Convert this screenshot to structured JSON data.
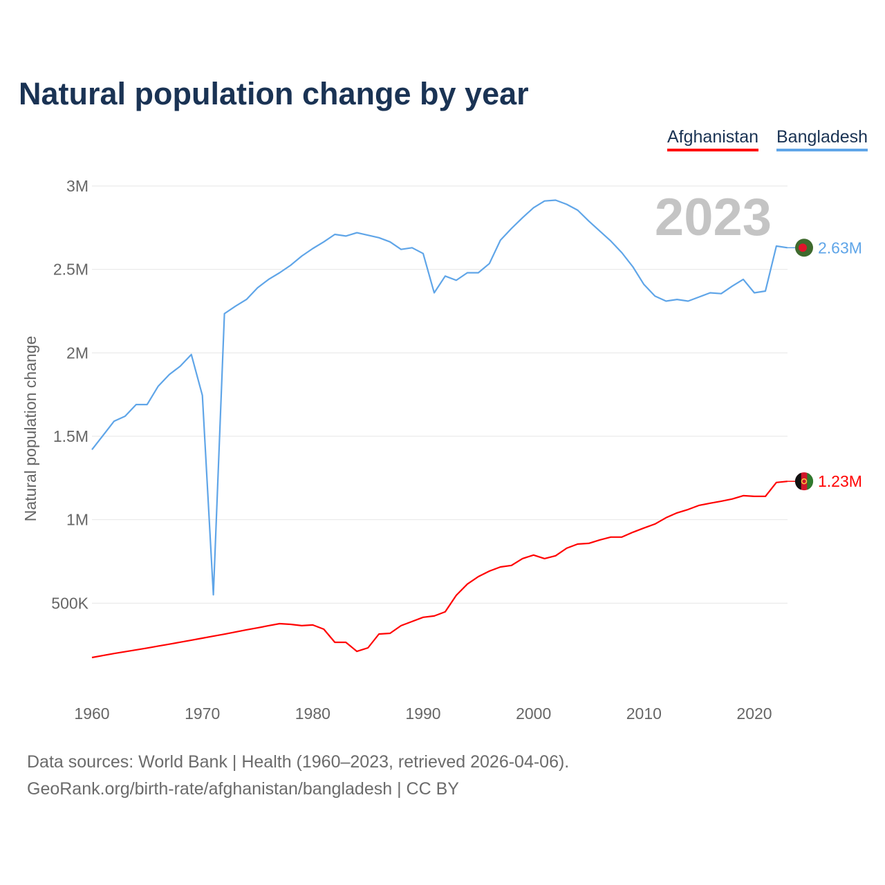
{
  "chart_data": {
    "type": "line",
    "title": "Natural population change by year",
    "xlabel": "",
    "ylabel": "Natural population change",
    "xlim": [
      1960,
      2023
    ],
    "ylim": [
      0,
      3000000
    ],
    "x_ticks": [
      1960,
      1970,
      1980,
      1990,
      2000,
      2010,
      2020
    ],
    "y_ticks": [
      {
        "v": 500000,
        "label": "500K"
      },
      {
        "v": 1000000,
        "label": "1M"
      },
      {
        "v": 1500000,
        "label": "1.5M"
      },
      {
        "v": 2000000,
        "label": "2M"
      },
      {
        "v": 2500000,
        "label": "2.5M"
      },
      {
        "v": 3000000,
        "label": "3M"
      }
    ],
    "grid": true,
    "legend_position": "top-right",
    "year_label": "2023",
    "series": [
      {
        "name": "Afghanistan",
        "color": "#ff0000",
        "end_label": "1.23M",
        "flag": "afghanistan",
        "values": [
          0.174,
          0.186,
          0.198,
          0.209,
          0.22,
          0.231,
          0.243,
          0.254,
          0.266,
          0.278,
          0.29,
          0.302,
          0.314,
          0.327,
          0.34,
          0.352,
          0.365,
          0.377,
          0.373,
          0.365,
          0.369,
          0.344,
          0.265,
          0.265,
          0.211,
          0.232,
          0.315,
          0.319,
          0.365,
          0.39,
          0.415,
          0.423,
          0.448,
          0.547,
          0.614,
          0.659,
          0.692,
          0.717,
          0.726,
          0.767,
          0.788,
          0.767,
          0.784,
          0.829,
          0.854,
          0.858,
          0.879,
          0.896,
          0.896,
          0.925,
          0.95,
          0.974,
          1.012,
          1.041,
          1.061,
          1.086,
          1.099,
          1.111,
          1.124,
          1.144,
          1.14,
          1.14,
          1.223,
          1.23
        ]
      },
      {
        "name": "Bangladesh",
        "color": "#5fa5e8",
        "end_label": "2.63M",
        "flag": "bangladesh",
        "values": [
          1.42,
          1.505,
          1.59,
          1.62,
          1.69,
          1.69,
          1.8,
          1.87,
          1.92,
          1.99,
          1.745,
          0.55,
          2.235,
          2.28,
          2.32,
          2.39,
          2.44,
          2.48,
          2.525,
          2.58,
          2.625,
          2.665,
          2.71,
          2.7,
          2.72,
          2.705,
          2.69,
          2.665,
          2.62,
          2.63,
          2.595,
          2.36,
          2.46,
          2.435,
          2.48,
          2.48,
          2.535,
          2.675,
          2.745,
          2.81,
          2.87,
          2.91,
          2.915,
          2.89,
          2.855,
          2.79,
          2.73,
          2.67,
          2.6,
          2.515,
          2.41,
          2.34,
          2.31,
          2.32,
          2.31,
          2.335,
          2.36,
          2.355,
          2.4,
          2.44,
          2.36,
          2.37,
          2.64,
          2.63
        ]
      }
    ],
    "value_unit": "millions"
  },
  "footer": {
    "line1": "Data sources: World Bank | Health (1960–2023, retrieved 2026-04-06).",
    "line2": "GeoRank.org/birth-rate/afghanistan/bangladesh | CC BY"
  }
}
